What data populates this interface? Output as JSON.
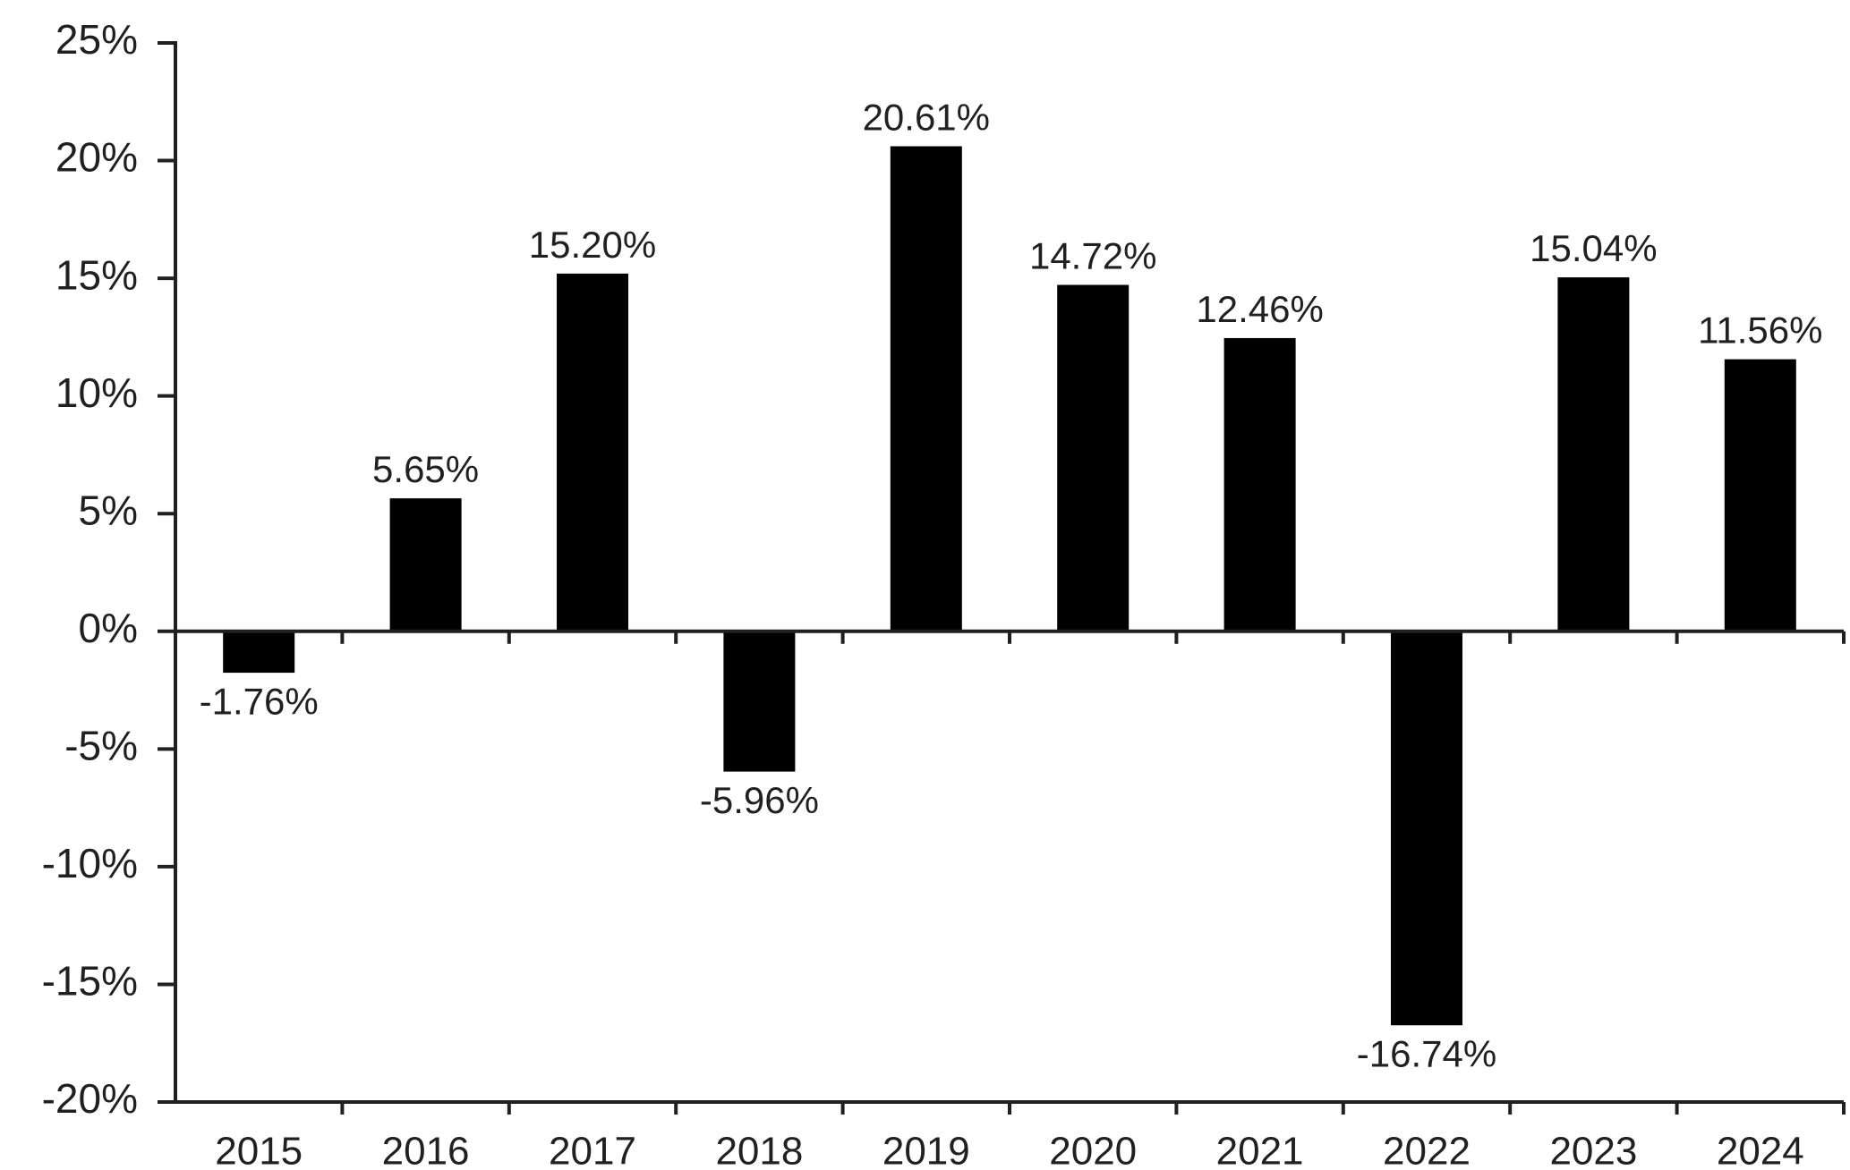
{
  "chart_data": {
    "type": "bar",
    "title": "",
    "xlabel": "",
    "ylabel": "",
    "categories": [
      "2015",
      "2016",
      "2017",
      "2018",
      "2019",
      "2020",
      "2021",
      "2022",
      "2023",
      "2024"
    ],
    "values": [
      -1.76,
      5.65,
      15.2,
      -5.96,
      20.61,
      14.72,
      12.46,
      -16.74,
      15.04,
      11.56
    ],
    "data_labels": [
      "-1.76%",
      "5.65%",
      "15.20%",
      "-5.96%",
      "20.61%",
      "14.72%",
      "12.46%",
      "-16.74%",
      "15.04%",
      "11.56%"
    ],
    "ylim": [
      -20,
      25
    ],
    "y_ticks": [
      25,
      20,
      15,
      10,
      5,
      0,
      -5,
      -10,
      -15,
      -20
    ],
    "y_tick_labels": [
      "25%",
      "20%",
      "15%",
      "10%",
      "5%",
      "0%",
      "-5%",
      "-10%",
      "-15%",
      "-20%"
    ],
    "grid": false,
    "legend": "none",
    "colors": {
      "bar": "#000000",
      "axis": "#231f20",
      "text": "#231f20"
    }
  }
}
